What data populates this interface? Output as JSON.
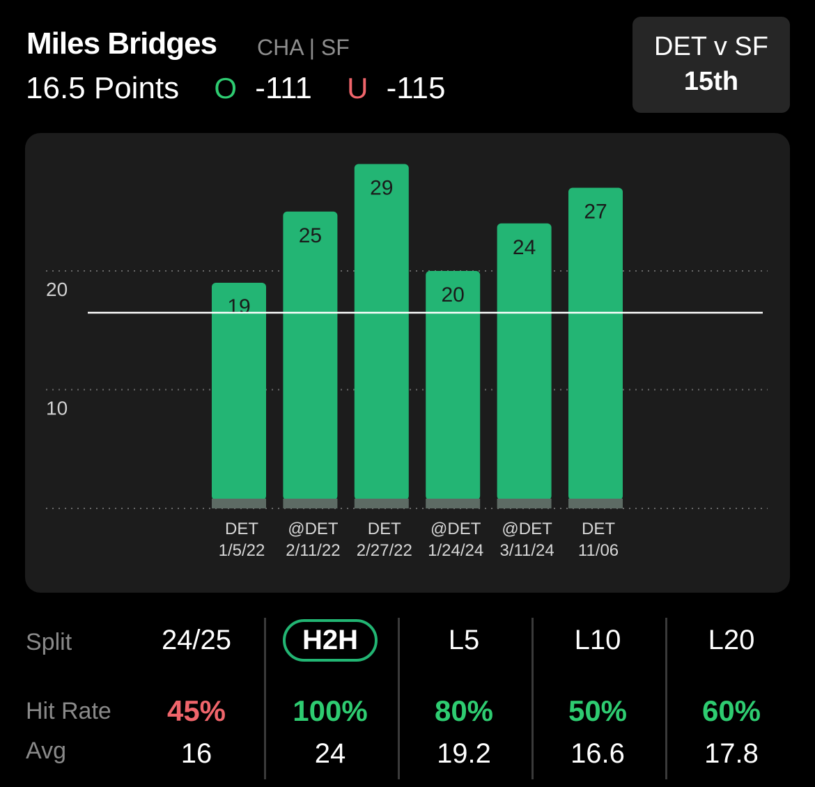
{
  "header": {
    "player_name": "Miles Bridges",
    "team": "CHA | SF",
    "prop_line": "16.5 Points",
    "over_letter": "O",
    "over_odds": "-111",
    "under_letter": "U",
    "under_odds": "-115"
  },
  "matchup": {
    "title": "DET v SF",
    "rank": "15th"
  },
  "colors": {
    "bar": "#23b574",
    "bar_base": "#5d6b64",
    "over": "#2ecc71",
    "under": "#f0656b",
    "card": "#1c1c1c"
  },
  "chart_data": {
    "type": "bar",
    "categories": [
      "DET 1/5/22",
      "@DET 2/11/22",
      "DET 2/27/22",
      "@DET 1/24/24",
      "@DET 3/11/24",
      "DET 11/06"
    ],
    "category_lines": [
      [
        "DET",
        "1/5/22"
      ],
      [
        "@DET",
        "2/11/22"
      ],
      [
        "DET",
        "2/27/22"
      ],
      [
        "@DET",
        "1/24/24"
      ],
      [
        "@DET",
        "3/11/24"
      ],
      [
        "DET",
        "11/06"
      ]
    ],
    "values": [
      19,
      25,
      29,
      20,
      24,
      27
    ],
    "yticks": [
      10,
      20
    ],
    "ylim": [
      0,
      30
    ],
    "prop_line": 16.5,
    "grid": "dotted"
  },
  "stats": {
    "row_labels": {
      "split": "Split",
      "hit_rate": "Hit Rate",
      "avg": "Avg"
    },
    "columns": [
      {
        "split": "24/25",
        "hit_rate": "45%",
        "avg": "16",
        "rate_color": "#f0656b",
        "active": false
      },
      {
        "split": "H2H",
        "hit_rate": "100%",
        "avg": "24",
        "rate_color": "#2ecc71",
        "active": true
      },
      {
        "split": "L5",
        "hit_rate": "80%",
        "avg": "19.2",
        "rate_color": "#2ecc71",
        "active": false
      },
      {
        "split": "L10",
        "hit_rate": "50%",
        "avg": "16.6",
        "rate_color": "#2ecc71",
        "active": false
      },
      {
        "split": "L20",
        "hit_rate": "60%",
        "avg": "17.8",
        "rate_color": "#2ecc71",
        "active": false
      }
    ]
  }
}
